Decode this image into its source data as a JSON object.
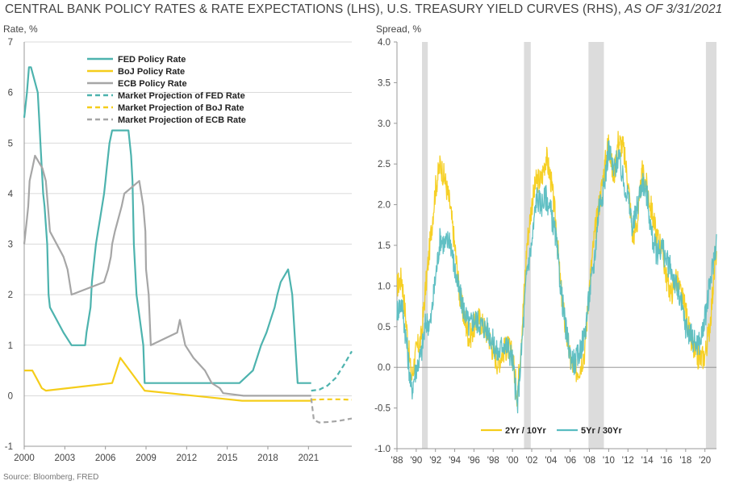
{
  "title": {
    "main": "CENTRAL BANK POLICY RATES & RATE EXPECTATIONS (LHS), U.S. TREASURY YIELD CURVES (RHS),",
    "asof": "AS OF 3/31/2021"
  },
  "source": "Source: Bloomberg, FRED",
  "colors": {
    "fed": "#4DB3AE",
    "boj": "#F5CD1A",
    "ecb": "#A6A6A6",
    "recession": "#DCDCDC",
    "axis": "#999999"
  },
  "chart_data": [
    {
      "type": "line",
      "ylabel": "Rate, %",
      "ylim": [
        -1,
        7
      ],
      "xlim": [
        2000,
        2024.2
      ],
      "yticks": [
        -1,
        0,
        1,
        2,
        3,
        4,
        5,
        6,
        7
      ],
      "xticks": [
        2000,
        2003,
        2006,
        2009,
        2012,
        2015,
        2018,
        2021
      ],
      "grid": "horizontal",
      "legend_position": "top-center",
      "series": [
        {
          "name": "FED Policy Rate",
          "style": "solid",
          "color": "#4DB3AE",
          "x": [
            2000.0,
            2000.1,
            2000.2,
            2000.35,
            2000.5,
            2001.0,
            2001.1,
            2001.2,
            2001.3,
            2001.4,
            2001.5,
            2001.7,
            2001.8,
            2001.9,
            2002.9,
            2003.5,
            2004.5,
            2004.6,
            2004.75,
            2004.9,
            2005.0,
            2005.2,
            2005.3,
            2005.45,
            2005.6,
            2005.75,
            2005.9,
            2006.0,
            2006.1,
            2006.3,
            2006.5,
            2007.7,
            2007.9,
            2008.0,
            2008.1,
            2008.3,
            2008.8,
            2008.9,
            2015.9,
            2016.9,
            2017.2,
            2017.5,
            2017.9,
            2018.2,
            2018.5,
            2018.7,
            2018.95,
            2019.5,
            2019.65,
            2019.8,
            2020.2,
            2021.2
          ],
          "y": [
            5.5,
            5.75,
            6.0,
            6.5,
            6.5,
            6.0,
            5.5,
            5.0,
            4.5,
            4.0,
            3.75,
            3.0,
            2.0,
            1.75,
            1.25,
            1.0,
            1.0,
            1.25,
            1.5,
            1.75,
            2.25,
            2.75,
            3.0,
            3.25,
            3.5,
            3.75,
            4.0,
            4.25,
            4.5,
            5.0,
            5.25,
            5.25,
            4.75,
            4.25,
            3.0,
            2.0,
            1.0,
            0.25,
            0.25,
            0.5,
            0.75,
            1.0,
            1.25,
            1.5,
            1.75,
            2.0,
            2.25,
            2.5,
            2.25,
            2.0,
            0.25,
            0.25
          ]
        },
        {
          "name": "BoJ Policy Rate",
          "style": "solid",
          "color": "#F5CD1A",
          "x": [
            2000.0,
            2000.6,
            2001.1,
            2001.3,
            2001.6,
            2006.5,
            2007.1,
            2008.9,
            2016.1,
            2021.2
          ],
          "y": [
            0.5,
            0.5,
            0.25,
            0.15,
            0.1,
            0.25,
            0.75,
            0.1,
            -0.1,
            -0.1
          ]
        },
        {
          "name": "ECB Policy Rate",
          "style": "solid",
          "color": "#A6A6A6",
          "x": [
            2000.0,
            2000.1,
            2000.2,
            2000.3,
            2000.4,
            2000.6,
            2000.8,
            2001.35,
            2001.6,
            2001.75,
            2001.9,
            2002.9,
            2003.2,
            2003.5,
            2005.9,
            2006.2,
            2006.4,
            2006.5,
            2006.7,
            2006.95,
            2007.2,
            2007.4,
            2008.5,
            2008.8,
            2008.95,
            2009.0,
            2009.2,
            2009.35,
            2011.3,
            2011.5,
            2011.9,
            2012.5,
            2013.35,
            2013.85,
            2014.45,
            2014.7,
            2016.2,
            2021.2
          ],
          "y": [
            3.0,
            3.25,
            3.5,
            3.75,
            4.25,
            4.5,
            4.75,
            4.5,
            4.25,
            3.75,
            3.25,
            2.75,
            2.5,
            2.0,
            2.25,
            2.5,
            2.75,
            3.0,
            3.25,
            3.5,
            3.75,
            4.0,
            4.25,
            3.75,
            3.25,
            2.5,
            2.0,
            1.0,
            1.25,
            1.5,
            1.0,
            0.75,
            0.5,
            0.25,
            0.15,
            0.05,
            0.0,
            0.0
          ]
        },
        {
          "name": "Market Projection of FED Rate",
          "style": "dashed",
          "color": "#4DB3AE",
          "x": [
            2021.2,
            2021.8,
            2022.4,
            2023.0,
            2023.6,
            2024.2
          ],
          "y": [
            0.1,
            0.12,
            0.2,
            0.35,
            0.6,
            0.88
          ]
        },
        {
          "name": "Market Projection of BoJ Rate",
          "style": "dashed",
          "color": "#F5CD1A",
          "x": [
            2021.2,
            2022.2,
            2023.2,
            2024.2
          ],
          "y": [
            -0.08,
            -0.07,
            -0.07,
            -0.08
          ]
        },
        {
          "name": "Market Projection of ECB Rate",
          "style": "dashed",
          "color": "#A6A6A6",
          "x": [
            2021.2,
            2021.4,
            2021.8,
            2022.5,
            2023.2,
            2023.8,
            2024.2
          ],
          "y": [
            -0.05,
            -0.48,
            -0.53,
            -0.52,
            -0.5,
            -0.47,
            -0.45
          ]
        }
      ]
    },
    {
      "type": "line",
      "ylabel": "Spread, %",
      "ylim": [
        -1.0,
        4.0
      ],
      "xlim": [
        1988,
        2021.2
      ],
      "yticks": [
        -1.0,
        -0.5,
        0.0,
        0.5,
        1.0,
        1.5,
        2.0,
        2.5,
        3.0,
        3.5,
        4.0
      ],
      "xticks": [
        "'88",
        "'90",
        "'92",
        "'94",
        "'96",
        "'98",
        "'00",
        "'02",
        "'04",
        "'06",
        "'08",
        "'10",
        "'12",
        "'14",
        "'16",
        "'18",
        "'20"
      ],
      "grid": "none",
      "legend_position": "bottom-right",
      "recession_shading": [
        [
          1990.6,
          1991.2
        ],
        [
          2001.2,
          2001.9
        ],
        [
          2007.9,
          2009.5
        ],
        [
          2020.1,
          2021.2
        ]
      ],
      "series": [
        {
          "name": "2Yr / 10Yr",
          "color": "#F5CD1A",
          "x": [
            1988.0,
            1988.5,
            1989.0,
            1989.5,
            1990.0,
            1990.5,
            1991.0,
            1991.5,
            1992.0,
            1992.5,
            1993.0,
            1993.5,
            1994.0,
            1994.5,
            1995.0,
            1995.5,
            1996.0,
            1996.5,
            1997.0,
            1997.5,
            1998.0,
            1998.5,
            1999.0,
            1999.5,
            2000.0,
            2000.5,
            2001.0,
            2001.5,
            2002.0,
            2002.5,
            2003.0,
            2003.5,
            2004.0,
            2004.5,
            2005.0,
            2005.5,
            2006.0,
            2006.5,
            2007.0,
            2007.5,
            2008.0,
            2008.5,
            2009.0,
            2009.5,
            2010.0,
            2010.5,
            2011.0,
            2011.5,
            2012.0,
            2012.5,
            2013.0,
            2013.5,
            2014.0,
            2014.5,
            2015.0,
            2015.5,
            2016.0,
            2016.5,
            2017.0,
            2017.5,
            2018.0,
            2018.5,
            2019.0,
            2019.5,
            2020.0,
            2020.5,
            2021.0,
            2021.2
          ],
          "y": [
            1.0,
            1.1,
            0.5,
            -0.15,
            0.2,
            0.35,
            1.0,
            1.6,
            2.2,
            2.5,
            2.3,
            2.0,
            1.5,
            0.9,
            0.6,
            0.35,
            0.5,
            0.6,
            0.5,
            0.4,
            0.2,
            0.05,
            0.2,
            0.25,
            0.15,
            -0.35,
            0.5,
            1.5,
            2.0,
            2.3,
            2.3,
            2.6,
            2.3,
            1.8,
            1.0,
            0.5,
            0.1,
            -0.05,
            0.0,
            0.2,
            1.0,
            1.6,
            2.0,
            2.4,
            2.8,
            2.3,
            2.8,
            2.7,
            2.3,
            1.6,
            1.8,
            2.4,
            2.2,
            1.9,
            1.6,
            1.5,
            1.1,
            0.9,
            1.1,
            0.9,
            0.7,
            0.35,
            0.15,
            0.1,
            0.15,
            0.5,
            1.2,
            1.45
          ]
        },
        {
          "name": "5Yr / 30Yr",
          "color": "#59BDC1",
          "x": [
            1988.0,
            1988.5,
            1989.0,
            1989.5,
            1990.0,
            1990.5,
            1991.0,
            1991.5,
            1992.0,
            1992.5,
            1993.0,
            1993.5,
            1994.0,
            1994.5,
            1995.0,
            1995.5,
            1996.0,
            1996.5,
            1997.0,
            1997.5,
            1998.0,
            1998.5,
            1999.0,
            1999.5,
            2000.0,
            2000.5,
            2001.0,
            2001.5,
            2002.0,
            2002.5,
            2003.0,
            2003.5,
            2004.0,
            2004.5,
            2005.0,
            2005.5,
            2006.0,
            2006.5,
            2007.0,
            2007.5,
            2008.0,
            2008.5,
            2009.0,
            2009.5,
            2010.0,
            2010.5,
            2011.0,
            2011.5,
            2012.0,
            2012.5,
            2013.0,
            2013.5,
            2014.0,
            2014.5,
            2015.0,
            2015.5,
            2016.0,
            2016.5,
            2017.0,
            2017.5,
            2018.0,
            2018.5,
            2019.0,
            2019.5,
            2020.0,
            2020.5,
            2021.0,
            2021.2
          ],
          "y": [
            0.7,
            0.8,
            0.3,
            -0.3,
            0.0,
            0.15,
            0.55,
            0.55,
            1.1,
            1.6,
            1.5,
            1.6,
            1.2,
            0.9,
            0.7,
            0.5,
            0.6,
            0.55,
            0.5,
            0.45,
            0.3,
            0.15,
            0.3,
            0.25,
            0.1,
            -0.5,
            0.3,
            1.2,
            1.5,
            2.1,
            2.0,
            2.1,
            1.9,
            1.6,
            1.0,
            0.5,
            0.15,
            0.05,
            0.2,
            0.4,
            0.9,
            1.3,
            2.0,
            2.2,
            2.7,
            2.4,
            2.6,
            2.3,
            2.1,
            1.7,
            2.0,
            2.3,
            2.1,
            1.6,
            1.4,
            1.5,
            1.3,
            1.2,
            1.0,
            0.8,
            0.5,
            0.4,
            0.3,
            0.3,
            0.6,
            1.0,
            1.4,
            1.55
          ]
        }
      ]
    }
  ]
}
